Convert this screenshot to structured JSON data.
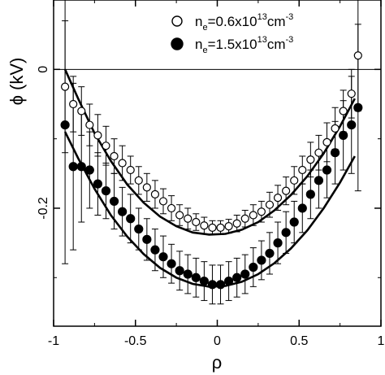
{
  "chart_data": {
    "type": "scatter",
    "xlabel": "ρ",
    "ylabel": "ϕ (kV)",
    "xlim": [
      -1,
      1
    ],
    "ylim": [
      -0.37,
      0.1
    ],
    "x_ticks": [
      {
        "value": -1,
        "label": "-1"
      },
      {
        "value": -0.5,
        "label": "-0.5"
      },
      {
        "value": 0,
        "label": "0"
      },
      {
        "value": 0.5,
        "label": "0.5"
      },
      {
        "value": 1,
        "label": "1"
      }
    ],
    "y_ticks": [
      {
        "value": 0,
        "label": "0"
      },
      {
        "value": -0.2,
        "label": "-0.2"
      }
    ],
    "zero_line": true,
    "legend_position": "top-right",
    "series": [
      {
        "name": "ne=0.6x10^13cm^-3",
        "legend": {
          "pre": "n",
          "sub": "e",
          "mid": "=0.6x10",
          "sup1": "13",
          "post": "cm",
          "sup2": "-3"
        },
        "marker": "open-circle",
        "points": [
          {
            "x": -0.93,
            "y": -0.025,
            "err": 0.095
          },
          {
            "x": -0.88,
            "y": -0.05,
            "err": 0.04
          },
          {
            "x": -0.83,
            "y": -0.06,
            "err": 0.035
          },
          {
            "x": -0.78,
            "y": -0.08,
            "err": 0.03
          },
          {
            "x": -0.73,
            "y": -0.095,
            "err": 0.03
          },
          {
            "x": -0.68,
            "y": -0.11,
            "err": 0.028
          },
          {
            "x": -0.63,
            "y": -0.125,
            "err": 0.025
          },
          {
            "x": -0.58,
            "y": -0.135,
            "err": 0.025
          },
          {
            "x": -0.53,
            "y": -0.145,
            "err": 0.02
          },
          {
            "x": -0.48,
            "y": -0.16,
            "err": 0.02
          },
          {
            "x": -0.43,
            "y": -0.17,
            "err": 0.02
          },
          {
            "x": -0.38,
            "y": -0.18,
            "err": 0.02
          },
          {
            "x": -0.33,
            "y": -0.19,
            "err": 0.018
          },
          {
            "x": -0.28,
            "y": -0.2,
            "err": 0.018
          },
          {
            "x": -0.23,
            "y": -0.21,
            "err": 0.015
          },
          {
            "x": -0.18,
            "y": -0.215,
            "err": 0.015
          },
          {
            "x": -0.13,
            "y": -0.22,
            "err": 0.012
          },
          {
            "x": -0.08,
            "y": -0.225,
            "err": 0.012
          },
          {
            "x": -0.03,
            "y": -0.228,
            "err": 0.01
          },
          {
            "x": 0.02,
            "y": -0.228,
            "err": 0.01
          },
          {
            "x": 0.07,
            "y": -0.226,
            "err": 0.01
          },
          {
            "x": 0.12,
            "y": -0.222,
            "err": 0.012
          },
          {
            "x": 0.17,
            "y": -0.215,
            "err": 0.012
          },
          {
            "x": 0.22,
            "y": -0.21,
            "err": 0.015
          },
          {
            "x": 0.27,
            "y": -0.205,
            "err": 0.015
          },
          {
            "x": 0.32,
            "y": -0.195,
            "err": 0.018
          },
          {
            "x": 0.37,
            "y": -0.185,
            "err": 0.018
          },
          {
            "x": 0.42,
            "y": -0.175,
            "err": 0.02
          },
          {
            "x": 0.47,
            "y": -0.16,
            "err": 0.02
          },
          {
            "x": 0.52,
            "y": -0.145,
            "err": 0.02
          },
          {
            "x": 0.57,
            "y": -0.13,
            "err": 0.025
          },
          {
            "x": 0.62,
            "y": -0.12,
            "err": 0.025
          },
          {
            "x": 0.67,
            "y": -0.105,
            "err": 0.028
          },
          {
            "x": 0.72,
            "y": -0.085,
            "err": 0.03
          },
          {
            "x": 0.77,
            "y": -0.06,
            "err": 0.03
          },
          {
            "x": 0.82,
            "y": -0.035,
            "err": 0.035
          },
          {
            "x": 0.86,
            "y": 0.02,
            "err": 0.08
          }
        ],
        "fit": [
          [
            -0.93,
            0.0
          ],
          [
            -0.85,
            -0.042
          ],
          [
            -0.75,
            -0.092
          ],
          [
            -0.65,
            -0.132
          ],
          [
            -0.55,
            -0.166
          ],
          [
            -0.45,
            -0.192
          ],
          [
            -0.35,
            -0.212
          ],
          [
            -0.25,
            -0.226
          ],
          [
            -0.15,
            -0.235
          ],
          [
            -0.05,
            -0.238
          ],
          [
            0.05,
            -0.237
          ],
          [
            0.15,
            -0.231
          ],
          [
            0.25,
            -0.22
          ],
          [
            0.35,
            -0.203
          ],
          [
            0.45,
            -0.181
          ],
          [
            0.55,
            -0.154
          ],
          [
            0.65,
            -0.121
          ],
          [
            0.75,
            -0.082
          ],
          [
            0.84,
            -0.042
          ]
        ]
      },
      {
        "name": "ne=1.5x10^13cm^-3",
        "legend": {
          "pre": "n",
          "sub": "e",
          "mid": "=1.5x10",
          "sup1": "13",
          "post": "cm",
          "sup2": "-3"
        },
        "marker": "filled-circle",
        "points": [
          {
            "x": -0.93,
            "y": -0.08,
            "err": 0.2
          },
          {
            "x": -0.88,
            "y": -0.14,
            "err": 0.12
          },
          {
            "x": -0.83,
            "y": -0.14,
            "err": 0.08
          },
          {
            "x": -0.78,
            "y": -0.145,
            "err": 0.055
          },
          {
            "x": -0.73,
            "y": -0.165,
            "err": 0.045
          },
          {
            "x": -0.68,
            "y": -0.175,
            "err": 0.04
          },
          {
            "x": -0.63,
            "y": -0.19,
            "err": 0.04
          },
          {
            "x": -0.58,
            "y": -0.205,
            "err": 0.035
          },
          {
            "x": -0.53,
            "y": -0.215,
            "err": 0.035
          },
          {
            "x": -0.48,
            "y": -0.23,
            "err": 0.03
          },
          {
            "x": -0.43,
            "y": -0.245,
            "err": 0.03
          },
          {
            "x": -0.38,
            "y": -0.26,
            "err": 0.03
          },
          {
            "x": -0.33,
            "y": -0.27,
            "err": 0.03
          },
          {
            "x": -0.28,
            "y": -0.28,
            "err": 0.028
          },
          {
            "x": -0.23,
            "y": -0.29,
            "err": 0.028
          },
          {
            "x": -0.18,
            "y": -0.295,
            "err": 0.028
          },
          {
            "x": -0.13,
            "y": -0.3,
            "err": 0.028
          },
          {
            "x": -0.08,
            "y": -0.305,
            "err": 0.028
          },
          {
            "x": -0.03,
            "y": -0.31,
            "err": 0.028
          },
          {
            "x": 0.02,
            "y": -0.31,
            "err": 0.028
          },
          {
            "x": 0.07,
            "y": -0.305,
            "err": 0.028
          },
          {
            "x": 0.12,
            "y": -0.3,
            "err": 0.028
          },
          {
            "x": 0.17,
            "y": -0.295,
            "err": 0.028
          },
          {
            "x": 0.22,
            "y": -0.285,
            "err": 0.028
          },
          {
            "x": 0.27,
            "y": -0.275,
            "err": 0.028
          },
          {
            "x": 0.32,
            "y": -0.265,
            "err": 0.03
          },
          {
            "x": 0.37,
            "y": -0.25,
            "err": 0.03
          },
          {
            "x": 0.42,
            "y": -0.235,
            "err": 0.03
          },
          {
            "x": 0.47,
            "y": -0.22,
            "err": 0.03
          },
          {
            "x": 0.52,
            "y": -0.2,
            "err": 0.035
          },
          {
            "x": 0.57,
            "y": -0.18,
            "err": 0.035
          },
          {
            "x": 0.62,
            "y": -0.16,
            "err": 0.04
          },
          {
            "x": 0.67,
            "y": -0.145,
            "err": 0.04
          },
          {
            "x": 0.72,
            "y": -0.12,
            "err": 0.045
          },
          {
            "x": 0.77,
            "y": -0.095,
            "err": 0.05
          },
          {
            "x": 0.82,
            "y": -0.08,
            "err": 0.07
          },
          {
            "x": 0.86,
            "y": -0.055,
            "err": 0.12
          }
        ],
        "fit": [
          [
            -0.93,
            -0.09
          ],
          [
            -0.85,
            -0.128
          ],
          [
            -0.75,
            -0.172
          ],
          [
            -0.65,
            -0.21
          ],
          [
            -0.55,
            -0.241
          ],
          [
            -0.45,
            -0.266
          ],
          [
            -0.35,
            -0.286
          ],
          [
            -0.25,
            -0.3
          ],
          [
            -0.15,
            -0.309
          ],
          [
            -0.05,
            -0.313
          ],
          [
            0.05,
            -0.312
          ],
          [
            0.15,
            -0.306
          ],
          [
            0.25,
            -0.295
          ],
          [
            0.35,
            -0.279
          ],
          [
            0.45,
            -0.258
          ],
          [
            0.55,
            -0.232
          ],
          [
            0.65,
            -0.2
          ],
          [
            0.75,
            -0.163
          ],
          [
            0.84,
            -0.125
          ]
        ]
      }
    ]
  }
}
